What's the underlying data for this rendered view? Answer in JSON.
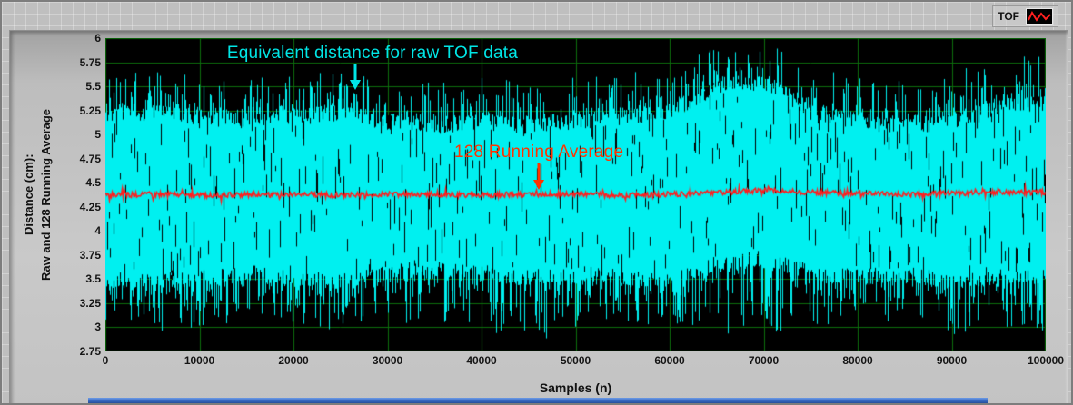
{
  "legend": {
    "label": "TOF"
  },
  "chart_data": {
    "type": "line",
    "title": "",
    "xlabel": "Samples (n)",
    "ylabel": "Distance (cm): Raw and 128 Running Average",
    "ylabel_lines": [
      "Distance (cm):",
      "Raw and 128 Running Average"
    ],
    "xlim": [
      0,
      100000
    ],
    "ylim": [
      2.75,
      6
    ],
    "grid": true,
    "grid_color": "#0c6e0c",
    "plot_bg": "#000000",
    "x_ticks": [
      0,
      10000,
      20000,
      30000,
      40000,
      50000,
      60000,
      70000,
      80000,
      90000,
      100000
    ],
    "x_tick_labels": [
      "0",
      "10000",
      "20000",
      "30000",
      "40000",
      "50000",
      "60000",
      "70000",
      "80000",
      "90000",
      "100000"
    ],
    "y_ticks": [
      6,
      5.75,
      5.5,
      5.25,
      5,
      4.75,
      4.5,
      4.25,
      4,
      3.75,
      3.5,
      3.25,
      3,
      2.75
    ],
    "y_tick_labels": [
      "6",
      "5.75",
      "5.5",
      "5.25",
      "5",
      "4.75",
      "4.5",
      "4.25",
      "4",
      "3.75",
      "3.5",
      "3.25",
      "3",
      "2.75"
    ],
    "series": [
      {
        "name": "Equivalent distance for raw TOF data",
        "color": "#00f0f0",
        "style": "noise-band",
        "x": [
          0,
          5000,
          10000,
          15000,
          20000,
          25000,
          30000,
          35000,
          40000,
          45000,
          50000,
          55000,
          60000,
          65000,
          70000,
          75000,
          80000,
          85000,
          90000,
          95000,
          100000
        ],
        "band_upper": [
          5.25,
          5.3,
          5.25,
          5.2,
          5.25,
          5.3,
          5.2,
          5.15,
          5.2,
          5.15,
          5.2,
          5.25,
          5.3,
          5.55,
          5.6,
          5.3,
          5.2,
          5.15,
          5.2,
          5.35,
          5.4
        ],
        "band_lower": [
          3.45,
          3.4,
          3.45,
          3.5,
          3.45,
          3.4,
          3.5,
          3.55,
          3.5,
          3.45,
          3.5,
          3.45,
          3.4,
          3.6,
          3.65,
          3.5,
          3.45,
          3.5,
          3.4,
          3.45,
          3.5
        ],
        "spike_max": [
          5.7,
          5.75,
          5.65,
          5.6,
          5.65,
          5.7,
          5.6,
          5.55,
          5.6,
          5.55,
          5.6,
          5.65,
          5.75,
          5.95,
          6.0,
          5.7,
          5.6,
          5.55,
          5.65,
          5.8,
          5.85
        ],
        "spike_min": [
          3.0,
          2.95,
          3.0,
          3.05,
          3.0,
          2.9,
          3.0,
          3.05,
          3.0,
          2.8,
          3.0,
          3.05,
          3.0,
          2.95,
          2.85,
          3.0,
          3.05,
          3.0,
          2.9,
          3.0,
          2.95
        ]
      },
      {
        "name": "128 Running Average",
        "color": "#ff1e1e",
        "style": "line",
        "x": [
          0,
          5000,
          10000,
          15000,
          20000,
          25000,
          30000,
          35000,
          40000,
          45000,
          50000,
          55000,
          60000,
          65000,
          70000,
          75000,
          80000,
          85000,
          90000,
          95000,
          100000
        ],
        "values": [
          4.37,
          4.38,
          4.37,
          4.38,
          4.38,
          4.37,
          4.38,
          4.38,
          4.37,
          4.38,
          4.38,
          4.37,
          4.38,
          4.4,
          4.42,
          4.4,
          4.39,
          4.38,
          4.39,
          4.4,
          4.4
        ]
      }
    ],
    "annotations": [
      {
        "text": "Equivalent distance for raw TOF data",
        "color": "#00e6e6",
        "x": 28400,
        "y": 5.84,
        "arrow_x": 26600,
        "arrow_tip_y": 5.46
      },
      {
        "text": "128 Running Average",
        "color": "#ff3300",
        "x": 46100,
        "y": 4.81,
        "arrow_x": 46100,
        "arrow_tip_y": 4.43
      }
    ]
  }
}
